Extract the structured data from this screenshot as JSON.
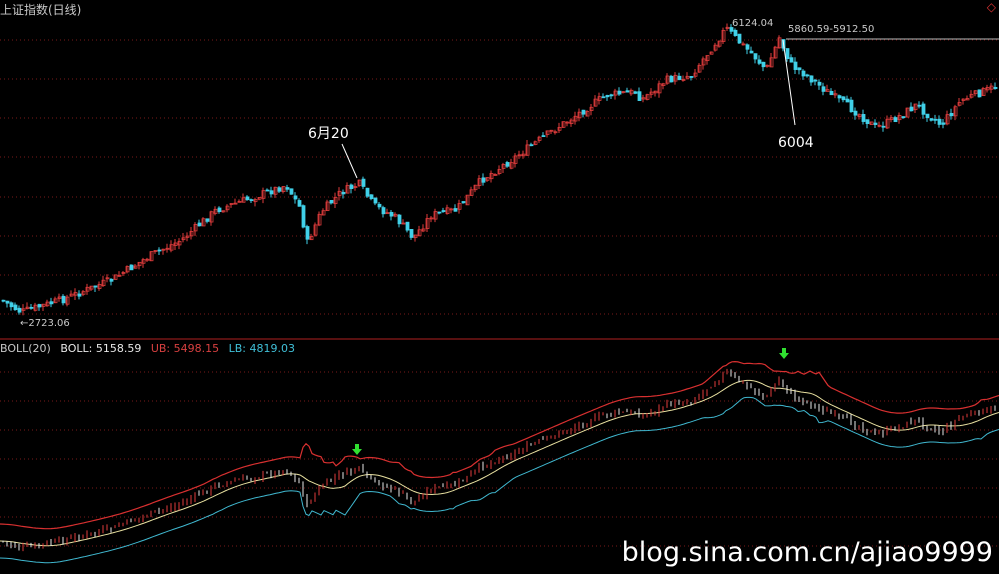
{
  "header": {
    "title": "上证指数(日线)",
    "corner_icon": "diamond-icon"
  },
  "indicator": {
    "name": "BOLL(20)",
    "boll": "BOLL: 5158.59",
    "ub": "UB: 5498.15",
    "lb": "LB: 4819.03"
  },
  "annotations": {
    "peak_label": "6124.04",
    "range_label": "5860.59-5912.50",
    "low_label": "←2723.06",
    "callout_june": "6月20",
    "callout_6004": "6004"
  },
  "watermark": "blog.sina.com.cn/ajiao9999",
  "colors": {
    "background": "#000000",
    "up": "#e03c3c",
    "down": "#40d0e8",
    "ub": "#d83030",
    "mid": "#e8e0a0",
    "lb": "#40b8d0",
    "arrow": "#30e030"
  }
}
